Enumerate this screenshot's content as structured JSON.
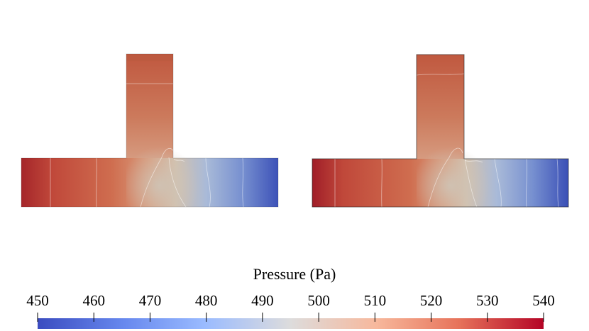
{
  "colorbar": {
    "title": "Pressure (Pa)",
    "min": 450,
    "max": 540,
    "ticks": [
      "450",
      "460",
      "470",
      "480",
      "490",
      "500",
      "510",
      "520",
      "530",
      "540"
    ],
    "colormap": [
      "#3b4cc0",
      "#7b9ff9",
      "#c0d4f5",
      "#dddcdc",
      "#f2cbb7",
      "#ee8468",
      "#b40426"
    ]
  },
  "panels": [
    {
      "name": "left-t-junction",
      "inlet_pressure": 540,
      "outlet_pressure": 450,
      "branch_pressure": 525
    },
    {
      "name": "right-t-junction",
      "inlet_pressure": 540,
      "outlet_pressure": 450,
      "branch_pressure": 525
    }
  ]
}
